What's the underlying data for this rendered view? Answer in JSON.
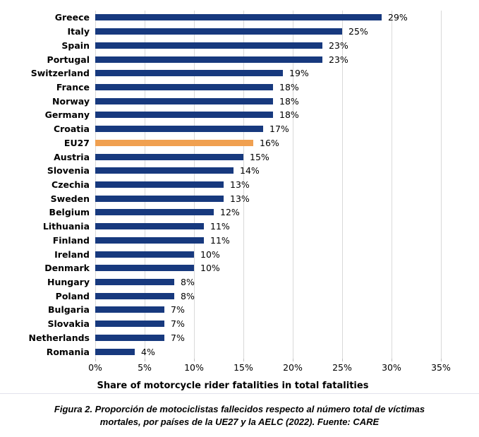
{
  "chart_data": {
    "type": "bar",
    "orientation": "horizontal",
    "title": "",
    "xlabel": "Share of motorcycle rider fatalities in total fatalities",
    "ylabel": "",
    "xlim": [
      0,
      35
    ],
    "x_ticks": [
      "0%",
      "5%",
      "10%",
      "15%",
      "20%",
      "25%",
      "30%",
      "35%"
    ],
    "grid": "vertical",
    "categories": [
      "Greece",
      "Italy",
      "Spain",
      "Portugal",
      "Switzerland",
      "France",
      "Norway",
      "Germany",
      "Croatia",
      "EU27",
      "Austria",
      "Slovenia",
      "Czechia",
      "Sweden",
      "Belgium",
      "Lithuania",
      "Finland",
      "Ireland",
      "Denmark",
      "Hungary",
      "Poland",
      "Bulgaria",
      "Slovakia",
      "Netherlands",
      "Romania"
    ],
    "values": [
      29,
      25,
      23,
      23,
      19,
      18,
      18,
      18,
      17,
      16,
      15,
      14,
      13,
      13,
      12,
      11,
      11,
      10,
      10,
      8,
      8,
      7,
      7,
      7,
      4
    ],
    "value_labels": [
      "29%",
      "25%",
      "23%",
      "23%",
      "19%",
      "18%",
      "18%",
      "18%",
      "17%",
      "16%",
      "15%",
      "14%",
      "13%",
      "13%",
      "12%",
      "11%",
      "11%",
      "10%",
      "10%",
      "8%",
      "8%",
      "7%",
      "7%",
      "7%",
      "4%"
    ],
    "highlight_category": "EU27",
    "bar_color": "#17397e",
    "highlight_color": "#f0a050",
    "gridline_color": "#d9d9d9"
  },
  "caption": {
    "lines": [
      "Figura 2. Proporción de motociclistas fallecidos respecto al número total de víctimas",
      "mortales, por países de la UE27 y la AELC (2022). Fuente: CARE"
    ]
  }
}
